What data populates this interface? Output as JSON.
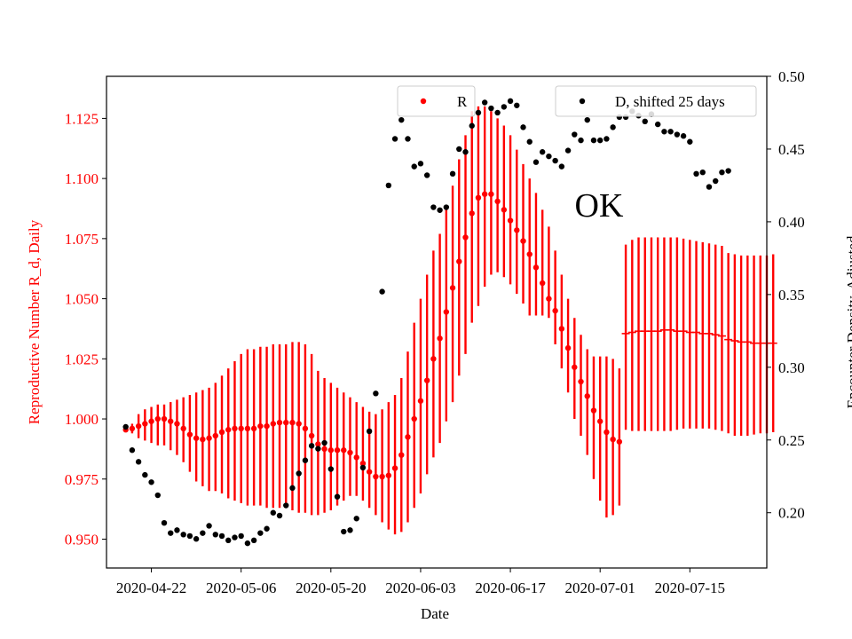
{
  "chart_data": {
    "type": "scatter",
    "title": "",
    "annotation": "OK",
    "xlabel": "Date",
    "ylabel_left": "Reproductive Number R_d, Daily",
    "ylabel_right": "Encounter Density, Adjusted",
    "x_ticks": [
      "2020-04-22",
      "2020-05-06",
      "2020-05-20",
      "2020-06-03",
      "2020-06-17",
      "2020-07-01",
      "2020-07-15"
    ],
    "x_range": [
      "2020-04-15",
      "2020-07-27"
    ],
    "y_left_ticks": [
      "0.950",
      "0.975",
      "1.000",
      "1.025",
      "1.050",
      "1.075",
      "1.100",
      "1.125"
    ],
    "y_left_range": [
      0.938,
      1.1425
    ],
    "y_right_ticks": [
      "0.20",
      "0.25",
      "0.30",
      "0.35",
      "0.40",
      "0.45",
      "0.50"
    ],
    "y_right_range": [
      0.162,
      0.5
    ],
    "grid": false,
    "colors": {
      "R": "#ff0000",
      "D": "#000000",
      "left_axis": "#ff0000"
    },
    "legend": [
      {
        "label": "R",
        "placement": "top-center"
      },
      {
        "label": "D, shifted 25 days",
        "placement": "top-right"
      }
    ],
    "series_R": {
      "name": "R",
      "first_date": "2020-04-18",
      "points": [
        [
          0.9955,
          0.9955,
          0.9955
        ],
        [
          0.996,
          0.994,
          0.998
        ],
        [
          0.997,
          0.992,
          1.002
        ],
        [
          0.998,
          0.991,
          1.004
        ],
        [
          0.999,
          0.99,
          1.005
        ],
        [
          1.0,
          0.989,
          1.006
        ],
        [
          1.0,
          0.989,
          1.006
        ],
        [
          0.999,
          0.987,
          1.007
        ],
        [
          0.998,
          0.985,
          1.008
        ],
        [
          0.996,
          0.982,
          1.009
        ],
        [
          0.9935,
          0.978,
          1.01
        ],
        [
          0.992,
          0.974,
          1.011
        ],
        [
          0.9915,
          0.972,
          1.012
        ],
        [
          0.992,
          0.97,
          1.013
        ],
        [
          0.993,
          0.97,
          1.015
        ],
        [
          0.9945,
          0.969,
          1.018
        ],
        [
          0.9955,
          0.967,
          1.021
        ],
        [
          0.996,
          0.966,
          1.024
        ],
        [
          0.996,
          0.965,
          1.027
        ],
        [
          0.996,
          0.964,
          1.029
        ],
        [
          0.996,
          0.964,
          1.029
        ],
        [
          0.997,
          0.964,
          1.03
        ],
        [
          0.997,
          0.963,
          1.03
        ],
        [
          0.998,
          0.963,
          1.031
        ],
        [
          0.9985,
          0.963,
          1.031
        ],
        [
          0.9985,
          0.963,
          1.031
        ],
        [
          0.9985,
          0.962,
          1.032
        ],
        [
          0.998,
          0.961,
          1.032
        ],
        [
          0.996,
          0.961,
          1.031
        ],
        [
          0.993,
          0.96,
          1.027
        ],
        [
          0.9895,
          0.96,
          1.02
        ],
        [
          0.9875,
          0.961,
          1.017
        ],
        [
          0.987,
          0.962,
          1.015
        ],
        [
          0.987,
          0.964,
          1.013
        ],
        [
          0.987,
          0.966,
          1.011
        ],
        [
          0.986,
          0.968,
          1.009
        ],
        [
          0.984,
          0.968,
          1.007
        ],
        [
          0.9815,
          0.966,
          1.005
        ],
        [
          0.978,
          0.963,
          1.003
        ],
        [
          0.976,
          0.96,
          1.002
        ],
        [
          0.976,
          0.957,
          1.004
        ],
        [
          0.9765,
          0.954,
          1.007
        ],
        [
          0.9795,
          0.952,
          1.01
        ],
        [
          0.985,
          0.953,
          1.017
        ],
        [
          0.9925,
          0.957,
          1.028
        ],
        [
          1.0,
          0.963,
          1.04
        ],
        [
          1.0075,
          0.969,
          1.05
        ],
        [
          1.016,
          0.977,
          1.06
        ],
        [
          1.025,
          0.984,
          1.07
        ],
        [
          1.0335,
          0.99,
          1.077
        ],
        [
          1.0445,
          0.999,
          1.087
        ],
        [
          1.0545,
          1.007,
          1.097
        ],
        [
          1.0655,
          1.018,
          1.108
        ],
        [
          1.0755,
          1.027,
          1.118
        ],
        [
          1.0855,
          1.04,
          1.128
        ],
        [
          1.092,
          1.047,
          1.13
        ],
        [
          1.0935,
          1.055,
          1.13
        ],
        [
          1.0935,
          1.06,
          1.128
        ],
        [
          1.0905,
          1.061,
          1.125
        ],
        [
          1.087,
          1.059,
          1.122
        ],
        [
          1.0825,
          1.056,
          1.118
        ],
        [
          1.0785,
          1.052,
          1.112
        ],
        [
          1.074,
          1.048,
          1.106
        ],
        [
          1.0685,
          1.043,
          1.1
        ],
        [
          1.063,
          1.043,
          1.094
        ],
        [
          1.0565,
          1.043,
          1.087
        ],
        [
          1.05,
          1.042,
          1.08
        ],
        [
          1.045,
          1.031,
          1.07
        ],
        [
          1.0375,
          1.021,
          1.06
        ],
        [
          1.0295,
          1.011,
          1.05
        ],
        [
          1.0215,
          1.0,
          1.042
        ],
        [
          1.0155,
          0.993,
          1.035
        ],
        [
          1.0095,
          0.985,
          1.029
        ],
        [
          1.0035,
          0.975,
          1.026
        ],
        [
          0.999,
          0.966,
          1.026
        ],
        [
          0.9945,
          0.959,
          1.026
        ],
        [
          0.9915,
          0.96,
          1.025
        ],
        [
          0.9905,
          0.964,
          1.021
        ]
      ]
    },
    "series_R_forecast": {
      "first_date": "2020-07-05",
      "points": [
        [
          1.0355,
          0.9955,
          1.0725
        ],
        [
          1.036,
          0.995,
          1.0745
        ],
        [
          1.0365,
          0.995,
          1.0755
        ],
        [
          1.0365,
          0.995,
          1.0755
        ],
        [
          1.0365,
          0.995,
          1.0755
        ],
        [
          1.0365,
          0.995,
          1.0755
        ],
        [
          1.037,
          0.995,
          1.0755
        ],
        [
          1.037,
          0.995,
          1.0755
        ],
        [
          1.0365,
          0.9955,
          1.0755
        ],
        [
          1.0365,
          0.996,
          1.075
        ],
        [
          1.036,
          0.996,
          1.0745
        ],
        [
          1.036,
          0.996,
          1.074
        ],
        [
          1.0355,
          0.996,
          1.0735
        ],
        [
          1.0355,
          0.996,
          1.073
        ],
        [
          1.035,
          0.9955,
          1.0725
        ],
        [
          1.0345,
          0.995,
          1.072
        ],
        [
          1.033,
          0.994,
          1.069
        ],
        [
          1.0325,
          0.993,
          1.0685
        ],
        [
          1.032,
          0.993,
          1.068
        ],
        [
          1.032,
          0.993,
          1.068
        ],
        [
          1.0315,
          0.9935,
          1.068
        ],
        [
          1.0315,
          0.994,
          1.068
        ],
        [
          1.0315,
          0.994,
          1.068
        ],
        [
          1.0315,
          0.9945,
          1.0685
        ]
      ]
    },
    "series_D": {
      "name": "D, shifted 25 days",
      "first_date": "2020-04-18",
      "values": [
        0.259,
        0.243,
        0.235,
        0.226,
        0.221,
        0.212,
        0.193,
        0.186,
        0.188,
        0.185,
        0.184,
        0.182,
        0.186,
        0.191,
        0.185,
        0.184,
        0.181,
        0.183,
        0.184,
        0.179,
        0.181,
        0.186,
        0.189,
        0.2,
        0.198,
        0.205,
        0.217,
        0.227,
        0.236,
        0.246,
        0.244,
        0.248,
        0.23,
        0.211,
        0.187,
        0.188,
        0.196,
        0.231,
        0.256,
        0.282,
        0.352,
        0.425,
        0.457,
        0.47,
        0.457,
        0.438,
        0.44,
        0.432,
        0.41,
        0.408,
        0.41,
        0.433,
        0.45,
        0.448,
        0.466,
        0.475,
        0.482,
        0.478,
        0.475,
        0.479,
        0.483,
        0.48,
        0.465,
        0.455,
        0.441,
        0.448,
        0.445,
        0.442,
        0.438,
        0.449,
        0.46,
        0.456,
        0.47,
        0.456,
        0.456,
        0.457,
        0.465,
        0.472,
        0.472,
        0.476,
        0.473,
        0.469,
        0.474,
        0.467,
        0.462,
        0.462,
        0.46,
        0.459,
        0.455,
        0.433,
        0.434,
        0.424,
        0.428,
        0.434,
        0.435
      ]
    }
  }
}
